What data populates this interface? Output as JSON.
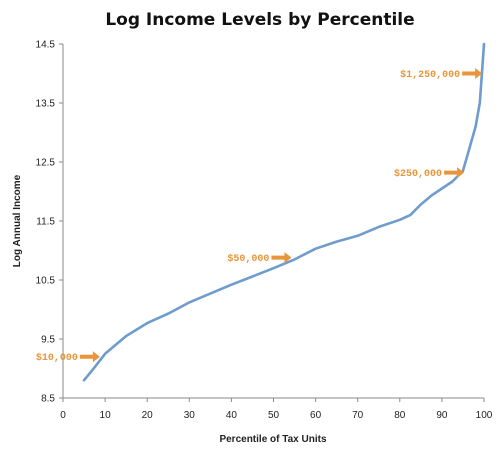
{
  "chart_data": {
    "type": "line",
    "title": "Log Income Levels by Percentile",
    "xlabel": "Percentile of Tax Units",
    "ylabel": "Log Annual Income",
    "xlim": [
      0,
      100
    ],
    "ylim": [
      8.5,
      14.5
    ],
    "xticks": [
      0,
      10,
      20,
      30,
      40,
      50,
      60,
      70,
      80,
      90,
      100
    ],
    "yticks": [
      8.5,
      9.5,
      10.5,
      11.5,
      12.5,
      13.5,
      14.5
    ],
    "grid": false,
    "line_color": "#6f9ccc",
    "annotation_color": "#e9953a",
    "series": [
      {
        "x": [
          5,
          7.5,
          10,
          12.5,
          15,
          20,
          25,
          30,
          35,
          40,
          45,
          50,
          55,
          60,
          65,
          70,
          75,
          80,
          82.5,
          85,
          87.5,
          90,
          92.5,
          95,
          96,
          97,
          98,
          99,
          99.5,
          100
        ],
        "y": [
          8.8,
          9.02,
          9.25,
          9.4,
          9.55,
          9.77,
          9.93,
          10.12,
          10.27,
          10.42,
          10.56,
          10.7,
          10.85,
          11.03,
          11.15,
          11.25,
          11.4,
          11.52,
          11.6,
          11.78,
          11.93,
          12.05,
          12.17,
          12.35,
          12.6,
          12.85,
          13.1,
          13.5,
          14.0,
          14.5
        ]
      }
    ],
    "annotations": [
      {
        "label": "$10,000",
        "x": 9,
        "y": 9.2
      },
      {
        "label": "$50,000",
        "x": 54.5,
        "y": 10.88
      },
      {
        "label": "$250,000",
        "x": 95.5,
        "y": 12.32
      },
      {
        "label": "$1,250,000",
        "x": 99.8,
        "y": 14.0
      }
    ]
  }
}
